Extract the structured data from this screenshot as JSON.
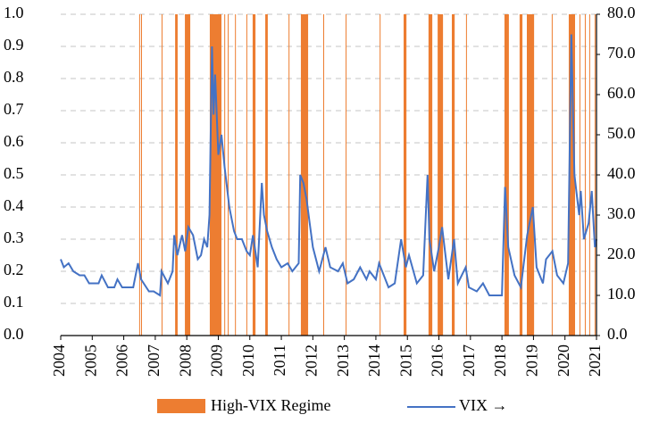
{
  "chart_data": {
    "type": "regime-line",
    "xlim": [
      2004,
      2021
    ],
    "xticks": [
      2004,
      2005,
      2006,
      2007,
      2008,
      2009,
      2010,
      2011,
      2012,
      2013,
      2014,
      2015,
      2016,
      2017,
      2018,
      2019,
      2020,
      2021
    ],
    "ylim": [
      0,
      1
    ],
    "yticks": [
      {
        "value": 0,
        "label": "0.0"
      },
      {
        "value": 0.1,
        "label": "0.1"
      },
      {
        "value": 0.2,
        "label": "0.2"
      },
      {
        "value": 0.3,
        "label": "0.3"
      },
      {
        "value": 0.4,
        "label": "0.4"
      },
      {
        "value": 0.5,
        "label": "0.5"
      },
      {
        "value": 0.6,
        "label": "0.6"
      },
      {
        "value": 0.7,
        "label": "0.7"
      },
      {
        "value": 0.8,
        "label": "0.8"
      },
      {
        "value": 0.9,
        "label": "0.9"
      },
      {
        "value": 1,
        "label": "1.0"
      }
    ],
    "y2lim": [
      0,
      80
    ],
    "y2ticks": [
      {
        "value": 0,
        "label": "0.0"
      },
      {
        "value": 10,
        "label": "10.0"
      },
      {
        "value": 20,
        "label": "20.0"
      },
      {
        "value": 30,
        "label": "30.0"
      },
      {
        "value": 40,
        "label": "40.0"
      },
      {
        "value": 50,
        "label": "50.0"
      },
      {
        "value": 60,
        "label": "60.0"
      },
      {
        "value": 70,
        "label": "70.0"
      },
      {
        "value": 80,
        "label": "80.0"
      }
    ],
    "grid": true,
    "regime": {
      "name": "High-VIX Regime",
      "color": "#ed7d31",
      "starts": [
        2006.49,
        2006.55,
        2007.2,
        2007.63,
        2007.94,
        2008.73,
        2009.19,
        2009.3,
        2009.53,
        2009.89,
        2010.09,
        2010.49,
        2011.23,
        2011.62,
        2012.33,
        2013.04,
        2014.12,
        2014.88,
        2015.67,
        2015.96,
        2016.41,
        2016.86,
        2018.08,
        2018.56,
        2018.79,
        2019.58,
        2020.12,
        2020.46,
        2020.63,
        2020.77,
        2020.94
      ],
      "ends": [
        2006.51,
        2006.57,
        2007.22,
        2007.71,
        2008.11,
        2009.1,
        2009.21,
        2009.32,
        2009.55,
        2009.91,
        2010.18,
        2010.57,
        2011.25,
        2011.85,
        2012.35,
        2013.06,
        2014.14,
        2014.97,
        2015.79,
        2016.13,
        2016.5,
        2016.88,
        2018.22,
        2018.65,
        2019.02,
        2019.6,
        2020.32,
        2020.48,
        2020.65,
        2020.79,
        2020.96
      ],
      "values": [
        1,
        1,
        1,
        1,
        1,
        1,
        1,
        1,
        1,
        1,
        1,
        1,
        1,
        1,
        1,
        1,
        1,
        1,
        1,
        1,
        1,
        1,
        1,
        1,
        1,
        1,
        1,
        1,
        1,
        1,
        1
      ]
    },
    "series": [
      {
        "name": "VIX →",
        "color": "#4472c4",
        "axis": "y2",
        "x": [
          2004.0,
          2004.1,
          2004.25,
          2004.4,
          2004.6,
          2004.75,
          2004.9,
          2005.0,
          2005.2,
          2005.3,
          2005.5,
          2005.7,
          2005.8,
          2005.95,
          2006.1,
          2006.3,
          2006.45,
          2006.55,
          2006.8,
          2006.95,
          2007.15,
          2007.2,
          2007.4,
          2007.55,
          2007.6,
          2007.7,
          2007.85,
          2007.95,
          2008.05,
          2008.2,
          2008.35,
          2008.45,
          2008.55,
          2008.65,
          2008.72,
          2008.8,
          2008.85,
          2008.9,
          2009.0,
          2009.1,
          2009.2,
          2009.35,
          2009.5,
          2009.6,
          2009.75,
          2009.9,
          2010.0,
          2010.1,
          2010.25,
          2010.38,
          2010.45,
          2010.55,
          2010.7,
          2010.85,
          2011.0,
          2011.2,
          2011.35,
          2011.55,
          2011.6,
          2011.7,
          2011.8,
          2011.9,
          2012.0,
          2012.2,
          2012.4,
          2012.55,
          2012.8,
          2012.95,
          2013.1,
          2013.3,
          2013.5,
          2013.7,
          2013.8,
          2014.0,
          2014.1,
          2014.4,
          2014.6,
          2014.8,
          2014.95,
          2015.05,
          2015.3,
          2015.5,
          2015.64,
          2015.7,
          2015.85,
          2016.0,
          2016.1,
          2016.3,
          2016.48,
          2016.6,
          2016.85,
          2016.95,
          2017.2,
          2017.4,
          2017.6,
          2017.8,
          2018.0,
          2018.1,
          2018.2,
          2018.4,
          2018.6,
          2018.8,
          2018.98,
          2019.1,
          2019.3,
          2019.4,
          2019.6,
          2019.75,
          2019.95,
          2020.1,
          2020.2,
          2020.3,
          2020.45,
          2020.5,
          2020.6,
          2020.75,
          2020.85,
          2020.95,
          2021.0
        ],
        "values": [
          19,
          17,
          18,
          16,
          15,
          15,
          13,
          13,
          13,
          15,
          12,
          12,
          14,
          12,
          12,
          12,
          18,
          14,
          11,
          11,
          10,
          16,
          13,
          16,
          25,
          20,
          25,
          21,
          27,
          25,
          19,
          20,
          24,
          22,
          30,
          72,
          55,
          65,
          45,
          50,
          42,
          32,
          26,
          24,
          24,
          21,
          20,
          25,
          17,
          38,
          30,
          26,
          22,
          19,
          17,
          18,
          16,
          18,
          40,
          38,
          34,
          28,
          22,
          16,
          22,
          17,
          16,
          18,
          13,
          14,
          17,
          14,
          16,
          14,
          18,
          12,
          13,
          24,
          17,
          20,
          13,
          15,
          40,
          24,
          16,
          22,
          27,
          14,
          24,
          13,
          17,
          12,
          11,
          13,
          10,
          10,
          10,
          37,
          22,
          15,
          12,
          25,
          32,
          17,
          13,
          19,
          21,
          15,
          13,
          18,
          75,
          40,
          30,
          36,
          24,
          28,
          36,
          22,
          24
        ]
      }
    ]
  }
}
